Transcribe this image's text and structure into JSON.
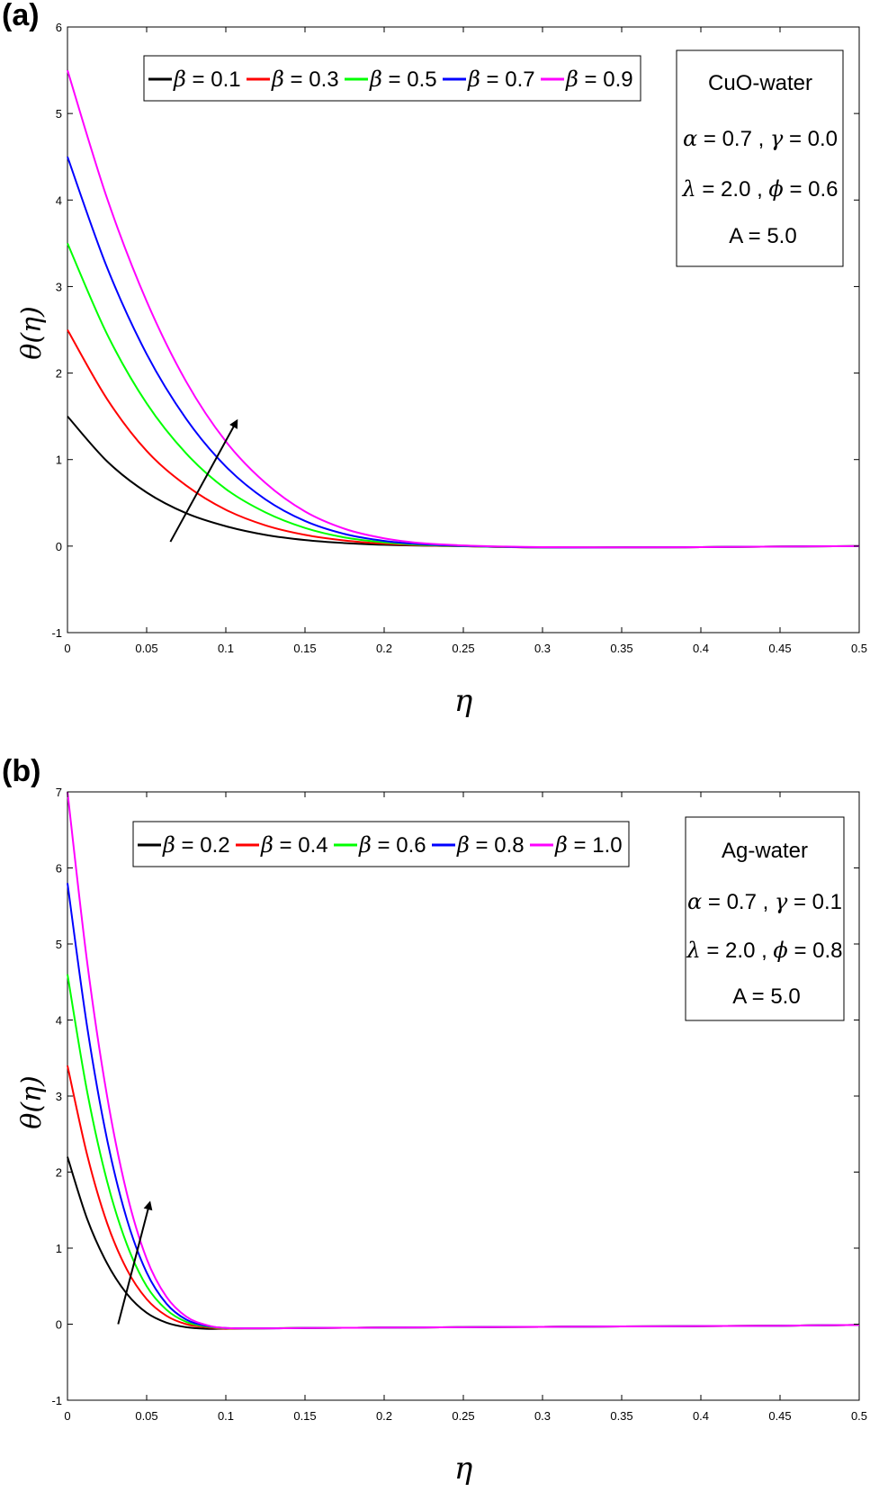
{
  "chart_data": [
    {
      "panel_label": "(a)",
      "type": "line",
      "xlabel": "η",
      "ylabel": "θ(η)",
      "xlim": [
        0,
        0.5
      ],
      "ylim": [
        -1,
        6
      ],
      "xticks": [
        "0",
        "0.05",
        "0.1",
        "0.15",
        "0.2",
        "0.25",
        "0.3",
        "0.35",
        "0.4",
        "0.45",
        "0.5"
      ],
      "yticks": [
        "-1",
        "0",
        "1",
        "2",
        "3",
        "4",
        "5",
        "6"
      ],
      "grid": false,
      "legend_position": "top",
      "info_box": {
        "fluid": "CuO-water",
        "line1": {
          "s1": "α",
          "v1": " = 0.7 , ",
          "s2": "γ",
          "v2": " = 0.0"
        },
        "line2": {
          "s1": "λ",
          "v1": " = 2.0 , ",
          "s2": "ϕ",
          "v2": " = 0.6"
        },
        "line3": "A = 5.0"
      },
      "arrow": {
        "from": [
          0.065,
          0.05
        ],
        "to": [
          0.107,
          1.45
        ]
      },
      "x": [
        0,
        0.025,
        0.05,
        0.075,
        0.1,
        0.125,
        0.15,
        0.175,
        0.2,
        0.225,
        0.25,
        0.275,
        0.3,
        0.35,
        0.4,
        0.45,
        0.5
      ],
      "series": [
        {
          "name": "β = 0.1",
          "symbol": "β",
          "value_text": " = 0.1",
          "color": "#000000",
          "values": [
            1.5,
            0.98,
            0.62,
            0.38,
            0.23,
            0.13,
            0.07,
            0.035,
            0.015,
            0.005,
            0.0,
            -0.01,
            -0.015,
            -0.015,
            -0.012,
            -0.005,
            0.0
          ]
        },
        {
          "name": "β = 0.3",
          "symbol": "β",
          "value_text": " = 0.3",
          "color": "#ff0000",
          "values": [
            2.5,
            1.7,
            1.1,
            0.7,
            0.42,
            0.24,
            0.13,
            0.065,
            0.028,
            0.008,
            -0.002,
            -0.01,
            -0.015,
            -0.015,
            -0.012,
            -0.005,
            0.0
          ]
        },
        {
          "name": "β = 0.5",
          "symbol": "β",
          "value_text": " = 0.5",
          "color": "#00ff00",
          "values": [
            3.5,
            2.45,
            1.65,
            1.07,
            0.66,
            0.39,
            0.21,
            0.1,
            0.043,
            0.013,
            0.0,
            -0.01,
            -0.015,
            -0.015,
            -0.012,
            -0.005,
            0.0
          ]
        },
        {
          "name": "β = 0.7",
          "symbol": "β",
          "value_text": " = 0.7",
          "color": "#0000ff",
          "values": [
            4.5,
            3.22,
            2.22,
            1.47,
            0.92,
            0.54,
            0.29,
            0.14,
            0.06,
            0.02,
            0.002,
            -0.008,
            -0.015,
            -0.015,
            -0.012,
            -0.005,
            0.0
          ]
        },
        {
          "name": "β = 0.9",
          "symbol": "β",
          "value_text": " = 0.9",
          "color": "#ff00ff",
          "values": [
            5.5,
            4.02,
            2.83,
            1.9,
            1.21,
            0.73,
            0.4,
            0.2,
            0.09,
            0.032,
            0.008,
            -0.005,
            -0.012,
            -0.015,
            -0.012,
            -0.005,
            0.0
          ]
        }
      ]
    },
    {
      "panel_label": "(b)",
      "type": "line",
      "xlabel": "η",
      "ylabel": "θ(η)",
      "xlim": [
        0,
        0.5
      ],
      "ylim": [
        -1,
        7
      ],
      "xticks": [
        "0",
        "0.05",
        "0.1",
        "0.15",
        "0.2",
        "0.25",
        "0.3",
        "0.35",
        "0.4",
        "0.45",
        "0.5"
      ],
      "yticks": [
        "-1",
        "0",
        "1",
        "2",
        "3",
        "4",
        "5",
        "6",
        "7"
      ],
      "grid": false,
      "legend_position": "top",
      "info_box": {
        "fluid": "Ag-water",
        "line1": {
          "s1": "α",
          "v1": " = 0.7 , ",
          "s2": "γ",
          "v2": " = 0.1"
        },
        "line2": {
          "s1": "λ",
          "v1": " = 2.0 , ",
          "s2": "ϕ",
          "v2": " = 0.8"
        },
        "line3": "A = 5.0"
      },
      "arrow": {
        "from": [
          0.032,
          0.0
        ],
        "to": [
          0.052,
          1.6
        ]
      },
      "x": [
        0,
        0.0125,
        0.025,
        0.0375,
        0.05,
        0.0625,
        0.075,
        0.0875,
        0.1,
        0.125,
        0.15,
        0.2,
        0.25,
        0.3,
        0.35,
        0.4,
        0.45,
        0.5
      ],
      "series": [
        {
          "name": "β = 0.2",
          "symbol": "β",
          "value_text": " = 0.2",
          "color": "#000000",
          "values": [
            2.2,
            1.38,
            0.8,
            0.4,
            0.15,
            0.02,
            -0.04,
            -0.06,
            -0.06,
            -0.055,
            -0.05,
            -0.045,
            -0.04,
            -0.035,
            -0.03,
            -0.025,
            -0.02,
            -0.01
          ]
        },
        {
          "name": "β = 0.4",
          "symbol": "β",
          "value_text": " = 0.4",
          "color": "#ff0000",
          "values": [
            3.4,
            2.22,
            1.33,
            0.72,
            0.33,
            0.11,
            0.0,
            -0.04,
            -0.06,
            -0.055,
            -0.05,
            -0.045,
            -0.04,
            -0.035,
            -0.03,
            -0.025,
            -0.02,
            -0.01
          ]
        },
        {
          "name": "β = 0.6",
          "symbol": "β",
          "value_text": " = 0.6",
          "color": "#00ff00",
          "values": [
            4.6,
            3.05,
            1.88,
            1.05,
            0.5,
            0.19,
            0.03,
            -0.03,
            -0.055,
            -0.055,
            -0.05,
            -0.045,
            -0.04,
            -0.035,
            -0.03,
            -0.025,
            -0.02,
            -0.01
          ]
        },
        {
          "name": "β = 0.8",
          "symbol": "β",
          "value_text": " = 0.8",
          "color": "#0000ff",
          "values": [
            5.8,
            3.9,
            2.43,
            1.38,
            0.68,
            0.27,
            0.06,
            -0.02,
            -0.05,
            -0.055,
            -0.05,
            -0.045,
            -0.04,
            -0.035,
            -0.03,
            -0.025,
            -0.02,
            -0.01
          ]
        },
        {
          "name": "β = 1.0",
          "symbol": "β",
          "value_text": " = 1.0",
          "color": "#ff00ff",
          "values": [
            7.0,
            4.75,
            3.0,
            1.72,
            0.86,
            0.36,
            0.1,
            -0.01,
            -0.05,
            -0.055,
            -0.05,
            -0.045,
            -0.04,
            -0.035,
            -0.03,
            -0.025,
            -0.02,
            -0.01
          ]
        }
      ]
    }
  ]
}
